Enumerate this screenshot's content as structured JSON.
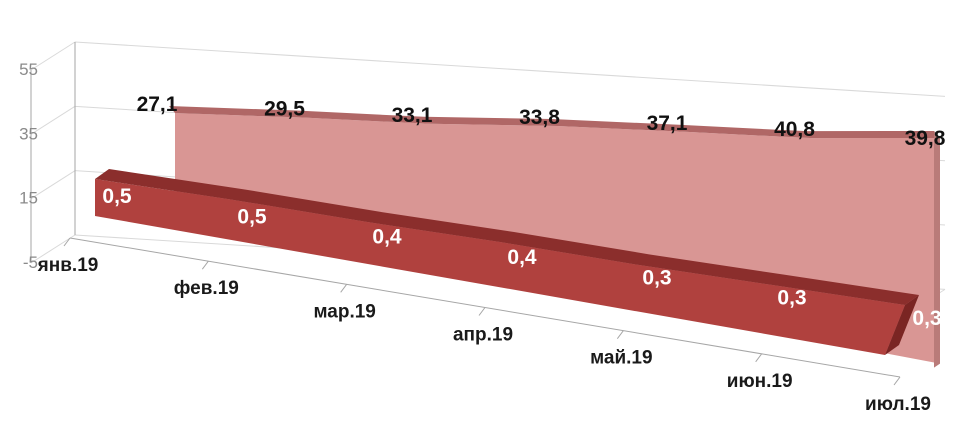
{
  "chart_data": {
    "type": "area",
    "view": "3d",
    "categories": [
      "янв.19",
      "фев.19",
      "мар.19",
      "апр.19",
      "май.19",
      "июн.19",
      "июл.19"
    ],
    "y_ticks": [
      "55",
      "35",
      "15",
      "-5"
    ],
    "ylim": [
      -5,
      55
    ],
    "grid": true,
    "legend": "none",
    "series": [
      {
        "labels": [
          "27,1",
          "29,5",
          "33,1",
          "33,8",
          "37,1",
          "40,8",
          "39,8"
        ],
        "values": [
          27.1,
          29.5,
          33.1,
          33.8,
          37.1,
          40.8,
          39.8
        ],
        "color": "#d99694",
        "top_color": "#b06766",
        "position": "back"
      },
      {
        "labels": [
          "0,5",
          "0,5",
          "0,4",
          "0,4",
          "0,3",
          "0,3",
          "0,3"
        ],
        "values": [
          0.5,
          0.5,
          0.4,
          0.4,
          0.3,
          0.3,
          0.3
        ],
        "color": "#b0413e",
        "top_color": "#8b2e2c",
        "position": "front"
      }
    ]
  }
}
